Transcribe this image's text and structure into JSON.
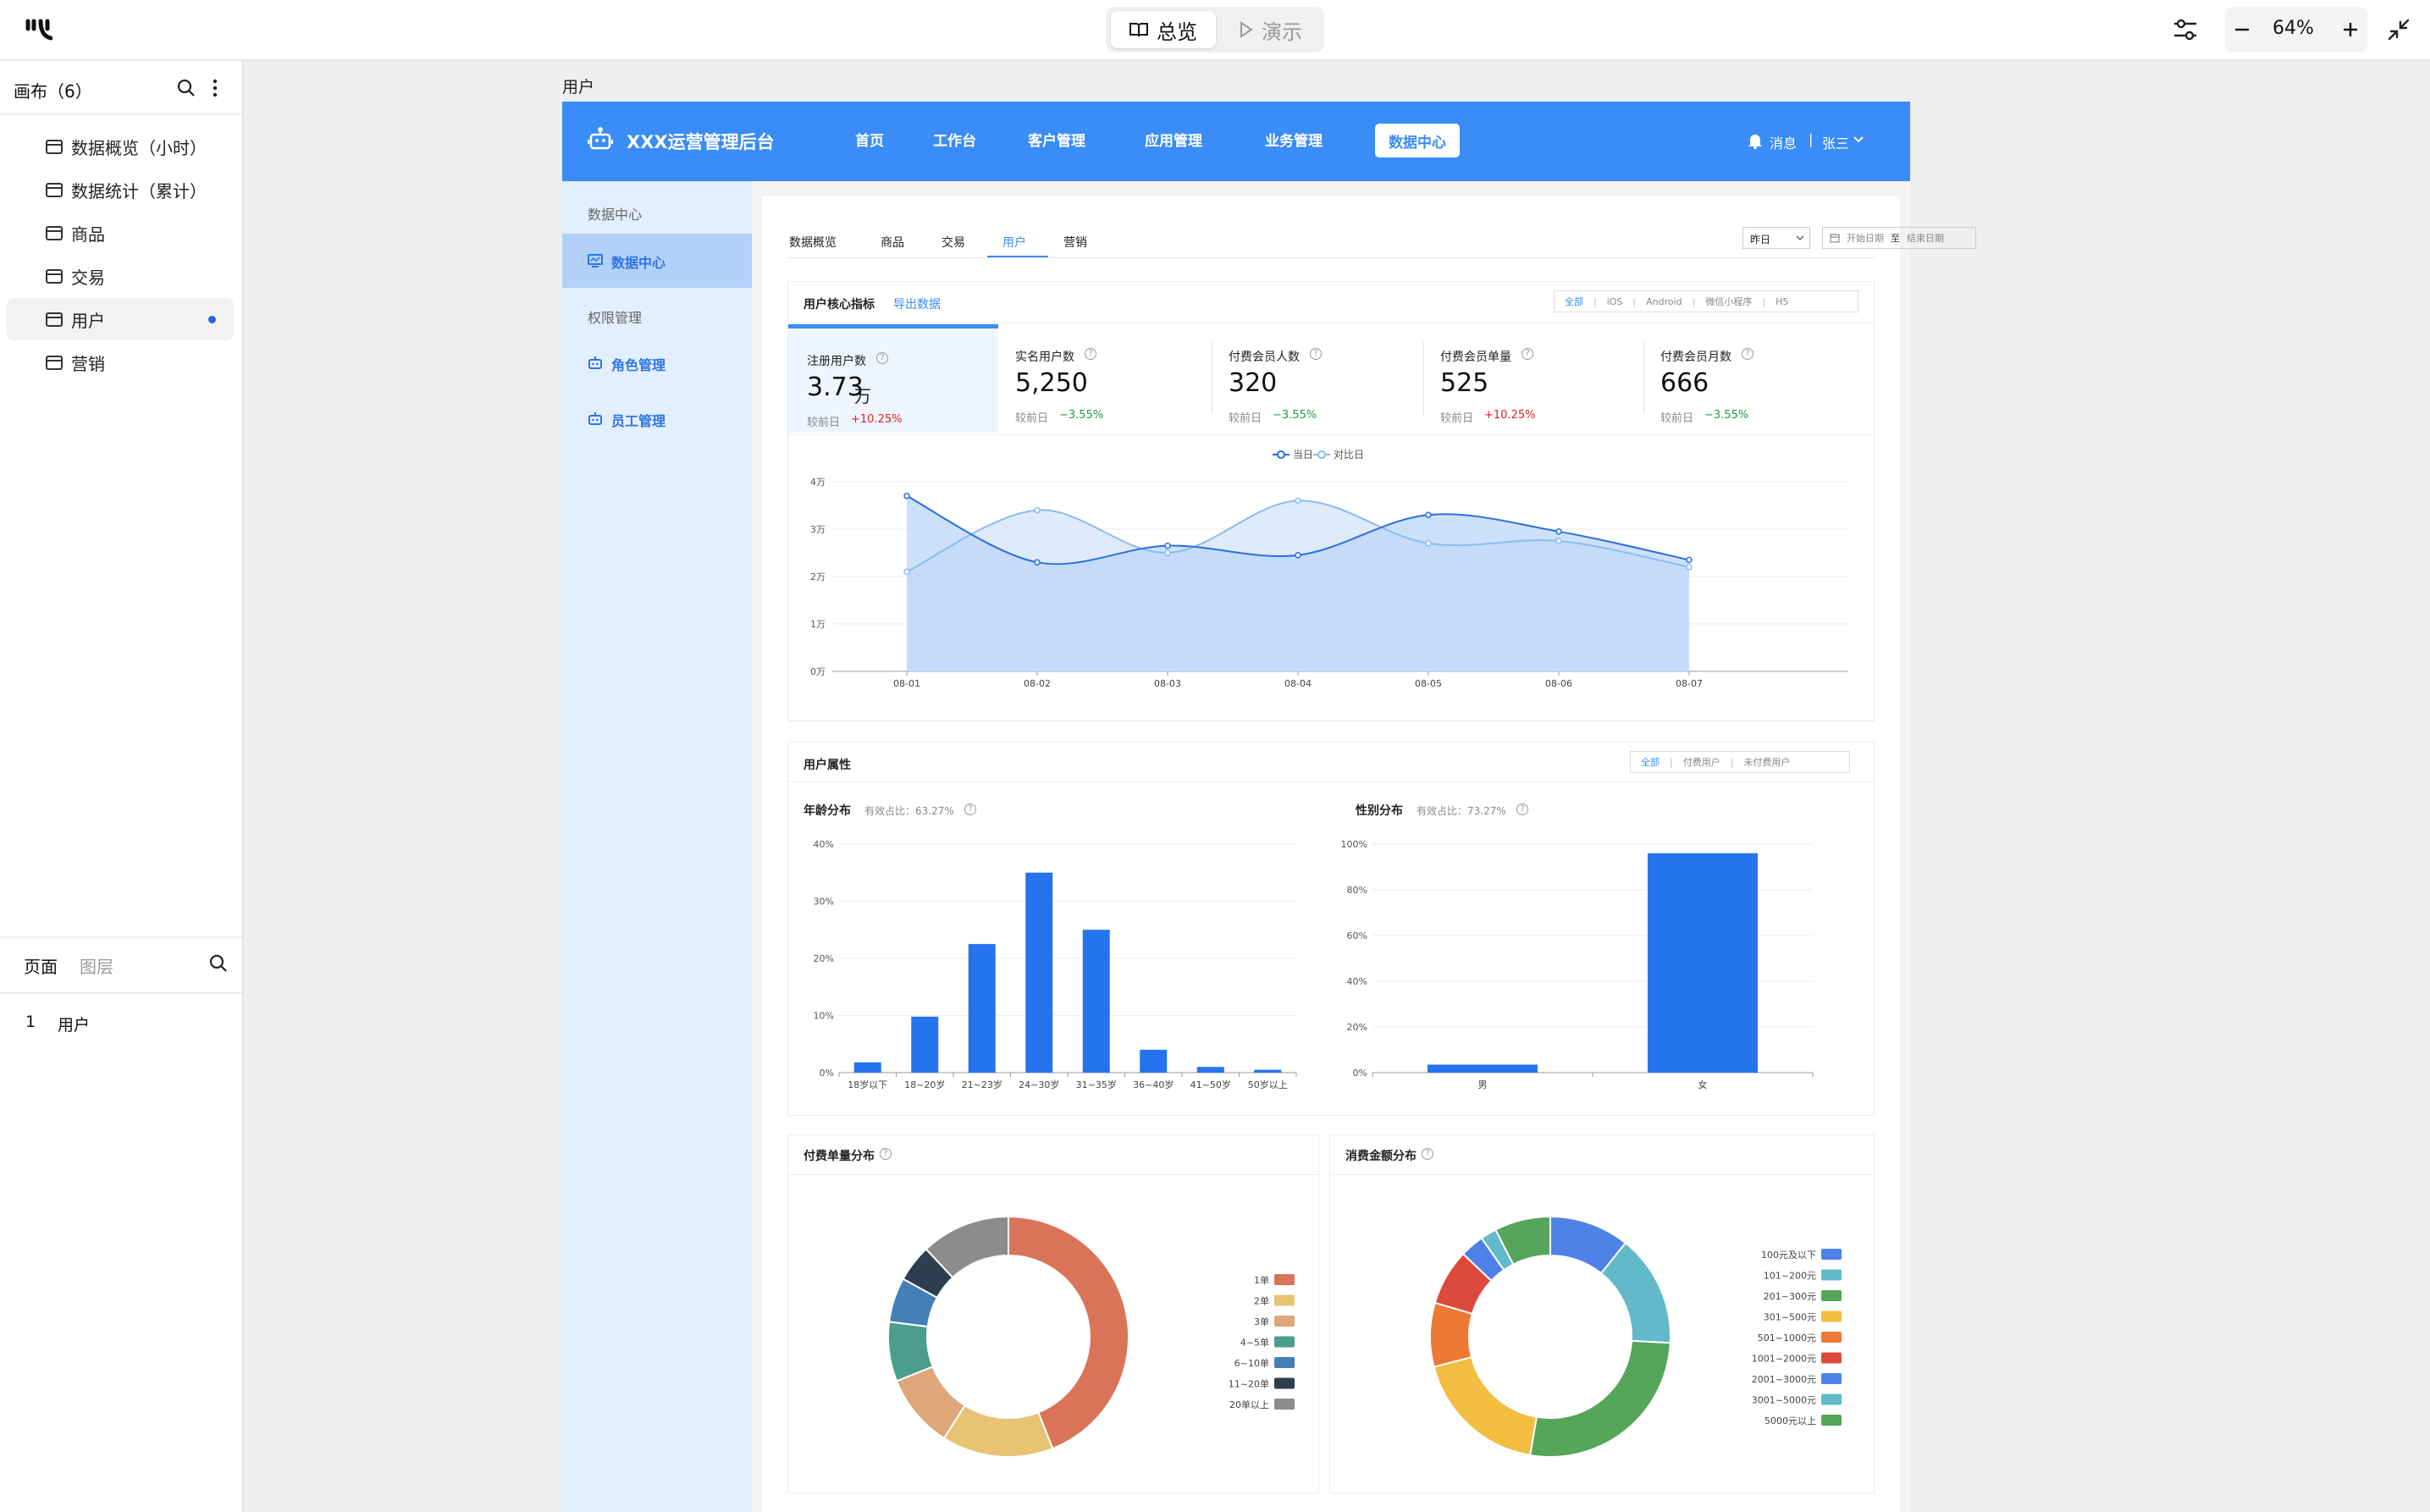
{
  "toolbar": {
    "overview_label": "总览",
    "present_label": "演示",
    "zoom": "64%"
  },
  "canvas_panel": {
    "title": "画布（6）",
    "items": [
      {
        "label": "数据概览（小时）"
      },
      {
        "label": "数据统计（累计）"
      },
      {
        "label": "商品"
      },
      {
        "label": "交易"
      },
      {
        "label": "用户",
        "active": true
      },
      {
        "label": "营销"
      }
    ]
  },
  "pages_panel": {
    "tab_pages": "页面",
    "tab_layers": "图层",
    "pages": [
      {
        "num": "1",
        "label": "用户"
      }
    ]
  },
  "frame_label": "用户",
  "app": {
    "brand": "XXX运营管理后台",
    "nav": [
      "首页",
      "工作台",
      "客户管理",
      "应用管理",
      "业务管理",
      "数据中心"
    ],
    "nav_active": "数据中心",
    "msg": "消息",
    "sep": "|",
    "user": "张三"
  },
  "side": {
    "section1": "数据中心",
    "item1": "数据中心",
    "section2": "权限管理",
    "item2": "角色管理",
    "item3": "员工管理"
  },
  "tabs": [
    "数据概览",
    "商品",
    "交易",
    "用户",
    "营销"
  ],
  "tab_active": "用户",
  "date": {
    "preset": "昨日",
    "start": "开始日期",
    "to": "至",
    "end": "结束日期"
  },
  "core": {
    "title": "用户核心指标",
    "export": "导出数据",
    "platforms": [
      "全部",
      "iOS",
      "Android",
      "微信小程序",
      "H5"
    ],
    "sep": "|"
  },
  "kpis": [
    {
      "label": "注册用户数",
      "value": "3.73",
      "unit": "万",
      "sub": "较前日",
      "change": "+10.25%",
      "dir": "up"
    },
    {
      "label": "实名用户数",
      "value": "5,250",
      "unit": "",
      "sub": "较前日",
      "change": "−3.55%",
      "dir": "down"
    },
    {
      "label": "付费会员人数",
      "value": "320",
      "unit": "",
      "sub": "较前日",
      "change": "−3.55%",
      "dir": "down"
    },
    {
      "label": "付费会员单量",
      "value": "525",
      "unit": "",
      "sub": "较前日",
      "change": "+10.25%",
      "dir": "up"
    },
    {
      "label": "付费会员月数",
      "value": "666",
      "unit": "",
      "sub": "较前日",
      "change": "−3.55%",
      "dir": "down"
    }
  ],
  "attr": {
    "title": "用户属性",
    "filters": [
      "全部",
      "付费用户",
      "未付费用户"
    ],
    "sep": "|",
    "age_title": "年龄分布",
    "age_ratio": "有效占比：63.27%",
    "gender_title": "性别分布",
    "gender_ratio": "有效占比：73.27%"
  },
  "donut_titles": {
    "orders": "付费单量分布",
    "amount": "消费金额分布"
  },
  "colors": {
    "accent": "#3a8cf6",
    "bar": "#2574ee",
    "line_today": "#2a6fe0",
    "line_compare": "#8bbcf2",
    "area": "#bcd5f8"
  },
  "chart_data": [
    {
      "type": "line",
      "legend": [
        "当日",
        "对比日"
      ],
      "x": [
        "08-01",
        "08-02",
        "08-03",
        "08-04",
        "08-05",
        "08-06",
        "08-07"
      ],
      "ylabels": [
        "0万",
        "1万",
        "2万",
        "3万",
        "4万"
      ],
      "ylim": [
        0,
        4
      ],
      "series": [
        {
          "name": "当日",
          "values": [
            3.7,
            2.3,
            2.65,
            2.45,
            3.3,
            2.95,
            2.35
          ]
        },
        {
          "name": "对比日",
          "values": [
            2.1,
            3.4,
            2.5,
            3.6,
            2.7,
            2.75,
            2.2
          ]
        }
      ]
    },
    {
      "type": "bar",
      "categories": [
        "18岁以下",
        "18~20岁",
        "21~23岁",
        "24~30岁",
        "31~35岁",
        "36~40岁",
        "41~50岁",
        "50岁以上"
      ],
      "ylabels": [
        "0%",
        "10%",
        "20%",
        "30%",
        "40%"
      ],
      "ylim": [
        0,
        40
      ],
      "values": [
        1.8,
        9.8,
        22.5,
        35,
        25,
        4,
        1,
        0.5
      ]
    },
    {
      "type": "bar",
      "categories": [
        "男",
        "女"
      ],
      "ylabels": [
        "0%",
        "20%",
        "40%",
        "60%",
        "80%",
        "100%"
      ],
      "ylim": [
        0,
        100
      ],
      "values": [
        3.5,
        96
      ]
    },
    {
      "type": "pie",
      "donut": true,
      "labels": [
        "1单",
        "2单",
        "3单",
        "4~5单",
        "6~10单",
        "11~20单",
        "20单以上"
      ],
      "values": [
        44,
        15,
        10,
        8,
        6,
        5,
        12
      ],
      "colors": [
        "#da7458",
        "#e7c473",
        "#dea679",
        "#4a9e8b",
        "#457fb7",
        "#2c3e50",
        "#8c8c8c"
      ]
    },
    {
      "type": "pie",
      "donut": true,
      "labels": [
        "100元及以下",
        "101~200元",
        "201~300元",
        "301~500元",
        "501~1000元",
        "1001~2000元",
        "2001~3000元",
        "3001~5000元",
        "5000元以上"
      ],
      "values": [
        10,
        14,
        25,
        17,
        8,
        7,
        3,
        2,
        7
      ],
      "colors": [
        "#4e82e6",
        "#62b9c9",
        "#55a55a",
        "#f2bd41",
        "#ee7934",
        "#db4a3c",
        "#4e82e6",
        "#62b9c9",
        "#55a55a"
      ]
    }
  ]
}
